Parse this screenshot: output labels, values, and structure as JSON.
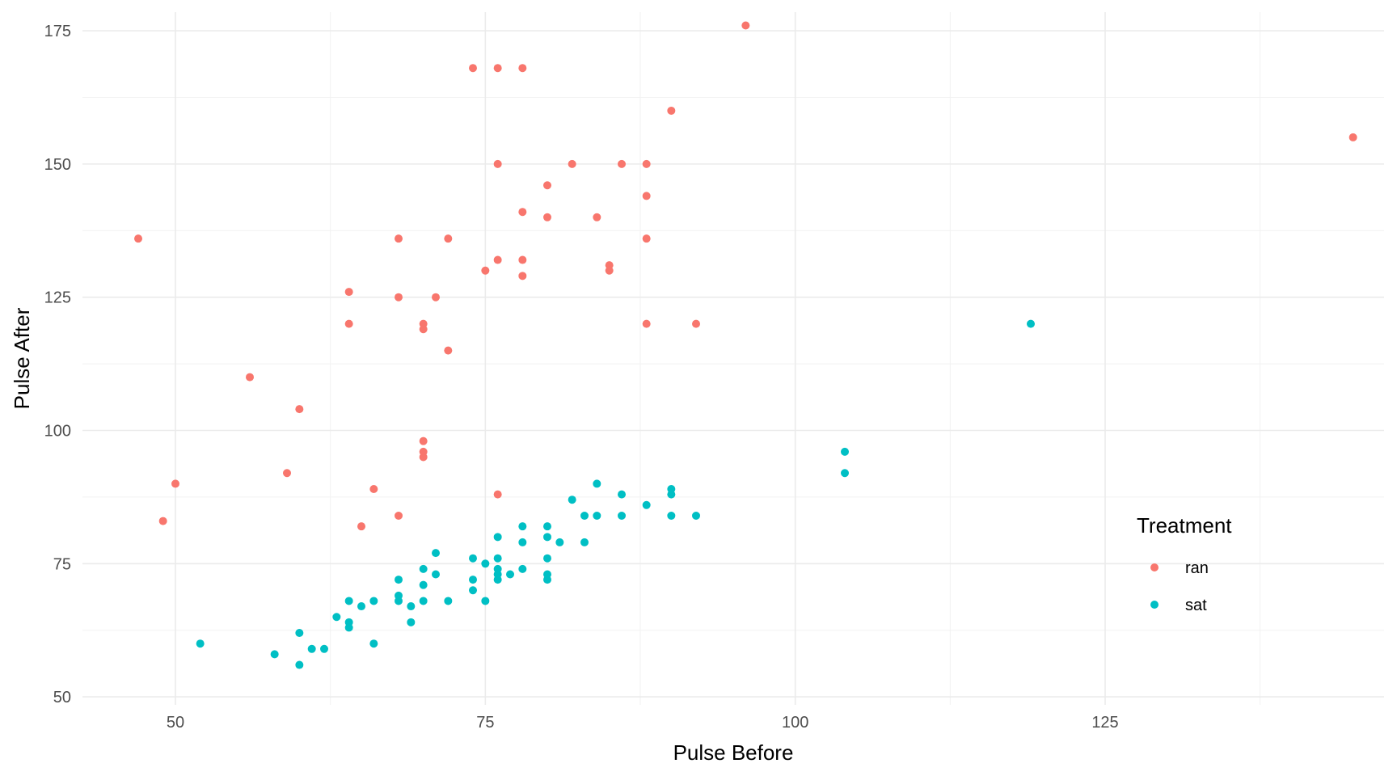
{
  "chart_data": {
    "type": "scatter",
    "xlabel": "Pulse Before",
    "ylabel": "Pulse After",
    "xlim": [
      42.5,
      147.5
    ],
    "ylim": [
      48.5,
      178.5
    ],
    "x_ticks": [
      50,
      75,
      100,
      125
    ],
    "y_ticks": [
      50,
      75,
      100,
      125,
      150,
      175
    ],
    "grid": true,
    "legend": {
      "title": "Treatment",
      "placement": "right-inside",
      "entries": [
        "ran",
        "sat"
      ]
    },
    "series": [
      {
        "name": "ran",
        "color": "#F8766D",
        "points": [
          [
            47,
            136
          ],
          [
            49,
            83
          ],
          [
            50,
            90
          ],
          [
            56,
            110
          ],
          [
            59,
            92
          ],
          [
            60,
            104
          ],
          [
            64,
            126
          ],
          [
            64,
            120
          ],
          [
            65,
            82
          ],
          [
            66,
            89
          ],
          [
            68,
            136
          ],
          [
            68,
            125
          ],
          [
            68,
            84
          ],
          [
            70,
            120
          ],
          [
            70,
            119
          ],
          [
            70,
            98
          ],
          [
            70,
            96
          ],
          [
            70,
            95
          ],
          [
            71,
            125
          ],
          [
            72,
            136
          ],
          [
            72,
            115
          ],
          [
            74,
            168
          ],
          [
            75,
            130
          ],
          [
            76,
            168
          ],
          [
            76,
            150
          ],
          [
            76,
            132
          ],
          [
            76,
            88
          ],
          [
            78,
            168
          ],
          [
            78,
            141
          ],
          [
            78,
            132
          ],
          [
            78,
            129
          ],
          [
            80,
            146
          ],
          [
            80,
            140
          ],
          [
            82,
            150
          ],
          [
            84,
            140
          ],
          [
            85,
            131
          ],
          [
            85,
            130
          ],
          [
            86,
            150
          ],
          [
            88,
            150
          ],
          [
            88,
            144
          ],
          [
            88,
            136
          ],
          [
            88,
            120
          ],
          [
            90,
            160
          ],
          [
            92,
            120
          ],
          [
            96,
            176
          ],
          [
            145,
            155
          ]
        ]
      },
      {
        "name": "sat",
        "color": "#00BFC4",
        "points": [
          [
            52,
            60
          ],
          [
            58,
            58
          ],
          [
            60,
            62
          ],
          [
            60,
            56
          ],
          [
            61,
            59
          ],
          [
            62,
            59
          ],
          [
            63,
            65
          ],
          [
            64,
            68
          ],
          [
            64,
            64
          ],
          [
            64,
            63
          ],
          [
            65,
            67
          ],
          [
            66,
            68
          ],
          [
            66,
            60
          ],
          [
            68,
            72
          ],
          [
            68,
            69
          ],
          [
            68,
            68
          ],
          [
            69,
            67
          ],
          [
            69,
            64
          ],
          [
            70,
            74
          ],
          [
            70,
            71
          ],
          [
            70,
            68
          ],
          [
            71,
            77
          ],
          [
            71,
            73
          ],
          [
            72,
            68
          ],
          [
            74,
            76
          ],
          [
            74,
            72
          ],
          [
            74,
            70
          ],
          [
            75,
            75
          ],
          [
            75,
            68
          ],
          [
            76,
            80
          ],
          [
            76,
            76
          ],
          [
            76,
            74
          ],
          [
            76,
            73
          ],
          [
            76,
            72
          ],
          [
            77,
            73
          ],
          [
            78,
            82
          ],
          [
            78,
            79
          ],
          [
            78,
            74
          ],
          [
            80,
            82
          ],
          [
            80,
            80
          ],
          [
            80,
            76
          ],
          [
            80,
            73
          ],
          [
            80,
            72
          ],
          [
            81,
            79
          ],
          [
            82,
            87
          ],
          [
            83,
            84
          ],
          [
            83,
            79
          ],
          [
            84,
            90
          ],
          [
            84,
            84
          ],
          [
            86,
            88
          ],
          [
            86,
            84
          ],
          [
            88,
            86
          ],
          [
            90,
            89
          ],
          [
            90,
            88
          ],
          [
            90,
            84
          ],
          [
            92,
            84
          ],
          [
            104,
            96
          ],
          [
            104,
            92
          ],
          [
            119,
            120
          ]
        ]
      }
    ]
  }
}
